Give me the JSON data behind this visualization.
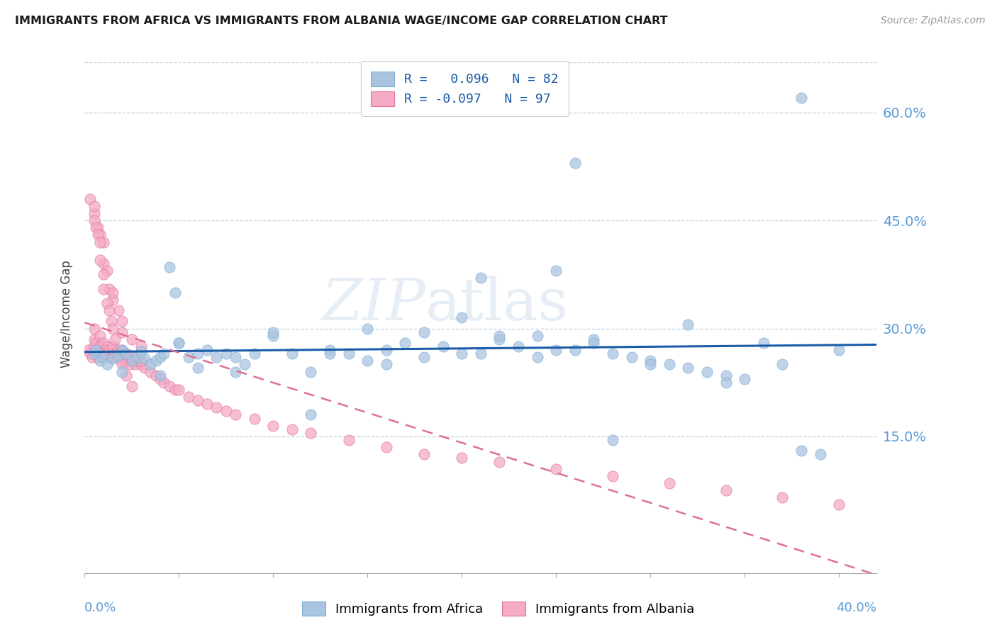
{
  "title": "IMMIGRANTS FROM AFRICA VS IMMIGRANTS FROM ALBANIA WAGE/INCOME GAP CORRELATION CHART",
  "source": "Source: ZipAtlas.com",
  "ylabel": "Wage/Income Gap",
  "ytick_values": [
    0.15,
    0.3,
    0.45,
    0.6
  ],
  "xlim": [
    0.0,
    0.42
  ],
  "ylim": [
    -0.04,
    0.68
  ],
  "africa_color": "#aac4e0",
  "africa_edge": "#7aafd4",
  "albania_color": "#f5aac5",
  "albania_edge": "#e070a0",
  "trend_africa_color": "#1a5ca8",
  "trend_albania_color": "#e07090",
  "africa_R": 0.096,
  "africa_N": 82,
  "albania_R": -0.097,
  "albania_N": 97,
  "watermark": "ZIPatlas",
  "africa_x": [
    0.005,
    0.006,
    0.008,
    0.01,
    0.012,
    0.015,
    0.018,
    0.02,
    0.022,
    0.025,
    0.028,
    0.03,
    0.032,
    0.035,
    0.038,
    0.04,
    0.042,
    0.045,
    0.048,
    0.05,
    0.055,
    0.06,
    0.065,
    0.07,
    0.075,
    0.08,
    0.09,
    0.1,
    0.11,
    0.12,
    0.13,
    0.14,
    0.15,
    0.16,
    0.17,
    0.18,
    0.19,
    0.2,
    0.21,
    0.22,
    0.23,
    0.24,
    0.25,
    0.26,
    0.27,
    0.28,
    0.29,
    0.3,
    0.31,
    0.32,
    0.33,
    0.34,
    0.35,
    0.36,
    0.37,
    0.38,
    0.39,
    0.4,
    0.21,
    0.25,
    0.38,
    0.32,
    0.27,
    0.12,
    0.15,
    0.18,
    0.22,
    0.26,
    0.3,
    0.34,
    0.05,
    0.08,
    0.1,
    0.13,
    0.16,
    0.2,
    0.24,
    0.28,
    0.02,
    0.04,
    0.06,
    0.085
  ],
  "africa_y": [
    0.265,
    0.27,
    0.255,
    0.26,
    0.25,
    0.258,
    0.262,
    0.27,
    0.265,
    0.255,
    0.26,
    0.268,
    0.258,
    0.25,
    0.255,
    0.26,
    0.265,
    0.385,
    0.35,
    0.28,
    0.26,
    0.265,
    0.27,
    0.26,
    0.265,
    0.24,
    0.265,
    0.29,
    0.265,
    0.24,
    0.27,
    0.265,
    0.3,
    0.27,
    0.28,
    0.295,
    0.275,
    0.315,
    0.265,
    0.285,
    0.275,
    0.29,
    0.27,
    0.53,
    0.285,
    0.265,
    0.26,
    0.255,
    0.25,
    0.245,
    0.24,
    0.235,
    0.23,
    0.28,
    0.25,
    0.13,
    0.125,
    0.27,
    0.37,
    0.38,
    0.62,
    0.305,
    0.28,
    0.18,
    0.255,
    0.26,
    0.29,
    0.27,
    0.25,
    0.225,
    0.28,
    0.26,
    0.295,
    0.265,
    0.25,
    0.265,
    0.26,
    0.145,
    0.24,
    0.235,
    0.245,
    0.25
  ],
  "albania_x": [
    0.002,
    0.003,
    0.004,
    0.005,
    0.005,
    0.005,
    0.006,
    0.007,
    0.008,
    0.008,
    0.009,
    0.01,
    0.01,
    0.01,
    0.011,
    0.012,
    0.012,
    0.013,
    0.013,
    0.014,
    0.015,
    0.015,
    0.015,
    0.016,
    0.017,
    0.018,
    0.019,
    0.02,
    0.02,
    0.02,
    0.022,
    0.022,
    0.023,
    0.024,
    0.025,
    0.026,
    0.027,
    0.028,
    0.03,
    0.03,
    0.032,
    0.035,
    0.038,
    0.04,
    0.042,
    0.045,
    0.048,
    0.05,
    0.055,
    0.06,
    0.065,
    0.07,
    0.075,
    0.08,
    0.09,
    0.1,
    0.11,
    0.12,
    0.14,
    0.16,
    0.18,
    0.2,
    0.22,
    0.25,
    0.28,
    0.31,
    0.34,
    0.37,
    0.4,
    0.003,
    0.005,
    0.007,
    0.008,
    0.01,
    0.012,
    0.015,
    0.018,
    0.02,
    0.025,
    0.03,
    0.005,
    0.005,
    0.006,
    0.007,
    0.008,
    0.008,
    0.01,
    0.01,
    0.012,
    0.013,
    0.014,
    0.015,
    0.016,
    0.018,
    0.02,
    0.022,
    0.025
  ],
  "albania_y": [
    0.27,
    0.265,
    0.26,
    0.285,
    0.3,
    0.275,
    0.28,
    0.26,
    0.275,
    0.29,
    0.265,
    0.28,
    0.265,
    0.39,
    0.27,
    0.275,
    0.265,
    0.27,
    0.355,
    0.26,
    0.275,
    0.26,
    0.34,
    0.265,
    0.265,
    0.27,
    0.265,
    0.27,
    0.295,
    0.255,
    0.265,
    0.255,
    0.26,
    0.25,
    0.26,
    0.255,
    0.25,
    0.255,
    0.25,
    0.275,
    0.245,
    0.24,
    0.235,
    0.23,
    0.225,
    0.22,
    0.215,
    0.215,
    0.205,
    0.2,
    0.195,
    0.19,
    0.185,
    0.18,
    0.175,
    0.165,
    0.16,
    0.155,
    0.145,
    0.135,
    0.125,
    0.12,
    0.115,
    0.105,
    0.095,
    0.085,
    0.075,
    0.065,
    0.055,
    0.48,
    0.46,
    0.44,
    0.43,
    0.42,
    0.38,
    0.35,
    0.325,
    0.31,
    0.285,
    0.255,
    0.47,
    0.45,
    0.44,
    0.43,
    0.42,
    0.395,
    0.375,
    0.355,
    0.335,
    0.325,
    0.31,
    0.3,
    0.285,
    0.265,
    0.25,
    0.235,
    0.22
  ]
}
